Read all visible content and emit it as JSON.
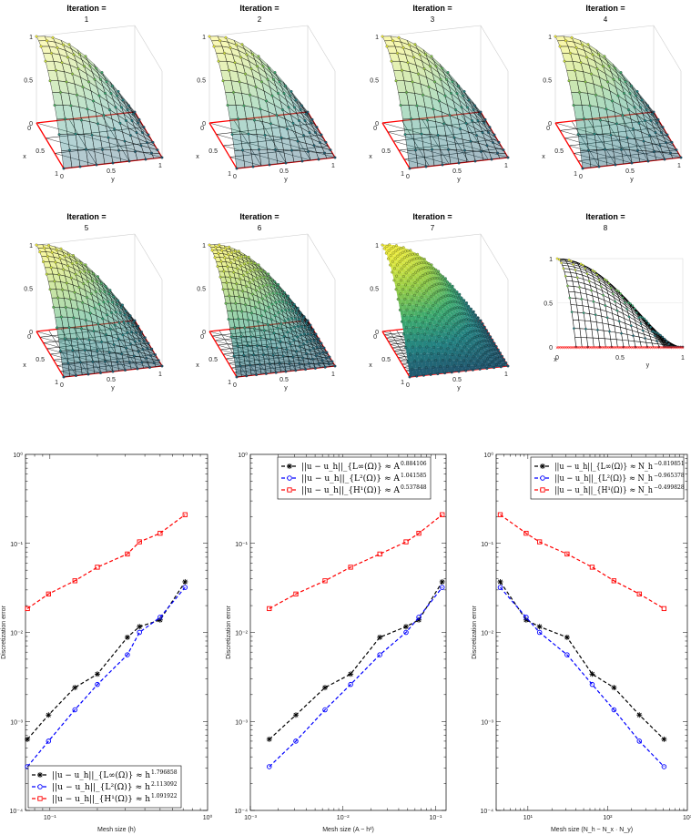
{
  "surface_panels": [
    {
      "title": "Iteration =",
      "iteration": "1",
      "refine": 3,
      "x_label": "x",
      "y_label": "y",
      "x_ticks": [
        "0",
        "0.5",
        "1"
      ],
      "y_ticks": [
        "0",
        "0.5",
        "1"
      ],
      "z_ticks": [
        "0",
        "0.5",
        "1"
      ]
    },
    {
      "title": "Iteration =",
      "iteration": "2",
      "refine": 4,
      "x_label": "x",
      "y_label": "y",
      "x_ticks": [
        "0",
        "0.5",
        "1"
      ],
      "y_ticks": [
        "0",
        "0.5",
        "1"
      ],
      "z_ticks": [
        "0",
        "0.5",
        "1"
      ]
    },
    {
      "title": "Iteration =",
      "iteration": "3",
      "refine": 5,
      "x_label": "x",
      "y_label": "y",
      "x_ticks": [
        "0",
        "0.5",
        "1"
      ],
      "y_ticks": [
        "0",
        "0.5",
        "1"
      ],
      "z_ticks": [
        "0",
        "0.5",
        "1"
      ]
    },
    {
      "title": "Iteration =",
      "iteration": "4",
      "refine": 6,
      "x_label": "x",
      "y_label": "y",
      "x_ticks": [
        "0",
        "0.5",
        "1"
      ],
      "y_ticks": [
        "0",
        "0.5",
        "1"
      ],
      "z_ticks": [
        "0",
        "0.5",
        "1"
      ]
    },
    {
      "title": "Iteration =",
      "iteration": "5",
      "refine": 8,
      "x_label": "x",
      "y_label": "y",
      "x_ticks": [
        "0",
        "0.5",
        "1"
      ],
      "y_ticks": [
        "0",
        "0.5",
        "1"
      ],
      "z_ticks": [
        "0",
        "0.5",
        "1"
      ]
    },
    {
      "title": "Iteration =",
      "iteration": "6",
      "refine": 10,
      "x_label": "x",
      "y_label": "y",
      "x_ticks": [
        "0",
        "0.5",
        "1"
      ],
      "y_ticks": [
        "0",
        "0.5",
        "1"
      ],
      "z_ticks": [
        "0",
        "0.5",
        "1"
      ]
    },
    {
      "title": "Iteration =",
      "iteration": "7",
      "refine": 14,
      "x_label": "x",
      "y_label": "y",
      "x_ticks": [
        "0",
        "0.5",
        "1"
      ],
      "y_ticks": [
        "0",
        "0.5",
        "1"
      ],
      "z_ticks": [
        "0",
        "0.5",
        "1"
      ]
    },
    {
      "title": "Iteration =",
      "iteration": "8",
      "refine": 18,
      "view": "side",
      "x_label": "x",
      "y_label": "y",
      "x_ticks": [
        "0",
        "0.5",
        "1"
      ],
      "y_ticks": [
        "0",
        "0.5",
        "1"
      ],
      "z_ticks": [
        "0",
        "0.5",
        "1"
      ]
    }
  ],
  "chart_data": [
    {
      "type": "line",
      "x_scale": "log",
      "y_scale": "log",
      "xlim": [
        0.07,
        1
      ],
      "ylim": [
        0.0001,
        1
      ],
      "x_tick_labels": [
        "10⁻¹",
        "10⁰"
      ],
      "x_tick_values": [
        0.1,
        1
      ],
      "y_tick_labels": [
        "10⁻⁴",
        "10⁻³",
        "10⁻²",
        "10⁻¹",
        "10⁰"
      ],
      "y_tick_values": [
        0.0001,
        0.001,
        0.01,
        0.1,
        1
      ],
      "xlabel": "Mesh size (h)",
      "ylabel": "Discretization error",
      "legend_position": "bottom-left",
      "x": [
        0.072,
        0.098,
        0.144,
        0.2,
        0.31,
        0.37,
        0.5,
        0.72
      ],
      "series": [
        {
          "name": "||u − u_h||_{L∞(Ω)} ≈ h",
          "exponent": "1.796858",
          "color": "#000000",
          "marker": "star",
          "values": [
            0.00063,
            0.00118,
            0.0024,
            0.0034,
            0.0088,
            0.0116,
            0.0138,
            0.037
          ]
        },
        {
          "name": "||u − u_h||_{L²(Ω)} ≈ h",
          "exponent": "2.113092",
          "color": "#0000ff",
          "marker": "circle",
          "values": [
            0.00031,
            0.0006,
            0.00135,
            0.0026,
            0.0056,
            0.01,
            0.0148,
            0.032
          ]
        },
        {
          "name": "||u − u_h||_{H¹(Ω)} ≈ h",
          "exponent": "1.091922",
          "color": "#ff0000",
          "marker": "square",
          "values": [
            0.0185,
            0.027,
            0.038,
            0.054,
            0.076,
            0.104,
            0.13,
            0.21
          ]
        }
      ]
    },
    {
      "type": "line",
      "x_scale": "log",
      "y_scale": "log",
      "xlim": [
        0.001,
        0.13
      ],
      "ylim": [
        0.0001,
        1
      ],
      "x_tick_labels": [
        "10⁻³",
        "10⁻²",
        "10⁻¹"
      ],
      "x_tick_values": [
        0.001,
        0.01,
        0.1
      ],
      "y_tick_labels": [
        "10⁻⁴",
        "10⁻³",
        "10⁻²",
        "10⁻¹",
        "10⁰"
      ],
      "y_tick_values": [
        0.0001,
        0.001,
        0.01,
        0.1,
        1
      ],
      "xlabel": "Mesh size (A ~ h²)",
      "ylabel": "Discretization error",
      "legend_position": "top-left",
      "x": [
        0.0016,
        0.0031,
        0.0064,
        0.0121,
        0.025,
        0.048,
        0.066,
        0.118
      ],
      "series": [
        {
          "name": "||u − u_h||_{L∞(Ω)} ≈ A",
          "exponent": "0.884106",
          "color": "#000000",
          "marker": "star",
          "values": [
            0.00063,
            0.00118,
            0.0024,
            0.0034,
            0.0088,
            0.0116,
            0.0138,
            0.037
          ]
        },
        {
          "name": "||u − u_h||_{L²(Ω)} ≈ A",
          "exponent": "1.041585",
          "color": "#0000ff",
          "marker": "circle",
          "values": [
            0.00031,
            0.0006,
            0.00135,
            0.0026,
            0.0056,
            0.01,
            0.0148,
            0.032
          ]
        },
        {
          "name": "||u − u_h||_{H¹(Ω)} ≈ A",
          "exponent": "0.537848",
          "color": "#ff0000",
          "marker": "square",
          "values": [
            0.0185,
            0.027,
            0.038,
            0.054,
            0.076,
            0.104,
            0.13,
            0.21
          ]
        }
      ]
    },
    {
      "type": "line",
      "x_scale": "log",
      "y_scale": "log",
      "xlim": [
        4,
        1000
      ],
      "ylim": [
        0.0001,
        1
      ],
      "x_tick_labels": [
        "10¹",
        "10²",
        "10³"
      ],
      "x_tick_values": [
        10,
        100,
        1000
      ],
      "y_tick_labels": [
        "10⁻⁴",
        "10⁻³",
        "10⁻²",
        "10⁻¹",
        "10⁰"
      ],
      "y_tick_values": [
        0.0001,
        0.001,
        0.01,
        0.1,
        1
      ],
      "xlabel": "Mesh size (N_h ~ N_x · N_y)",
      "ylabel": "Discretization error",
      "legend_position": "top-right",
      "x": [
        4.5,
        9.5,
        14,
        31,
        64,
        120,
        250,
        510
      ],
      "series": [
        {
          "name": "||u − u_h||_{L∞(Ω)} ≈ N_h",
          "exponent": "−0.819851",
          "color": "#000000",
          "marker": "star",
          "values": [
            0.037,
            0.0138,
            0.0116,
            0.0088,
            0.0034,
            0.0024,
            0.00118,
            0.00063
          ]
        },
        {
          "name": "||u − u_h||_{L²(Ω)} ≈ N_h",
          "exponent": "−0.965378",
          "color": "#0000ff",
          "marker": "circle",
          "values": [
            0.032,
            0.0148,
            0.01,
            0.0056,
            0.0026,
            0.00135,
            0.0006,
            0.00031
          ]
        },
        {
          "name": "||u − u_h||_{H¹(Ω)} ≈ N_h",
          "exponent": "−0.499828",
          "color": "#ff0000",
          "marker": "square",
          "values": [
            0.21,
            0.13,
            0.104,
            0.076,
            0.054,
            0.038,
            0.027,
            0.0185
          ]
        }
      ]
    }
  ]
}
